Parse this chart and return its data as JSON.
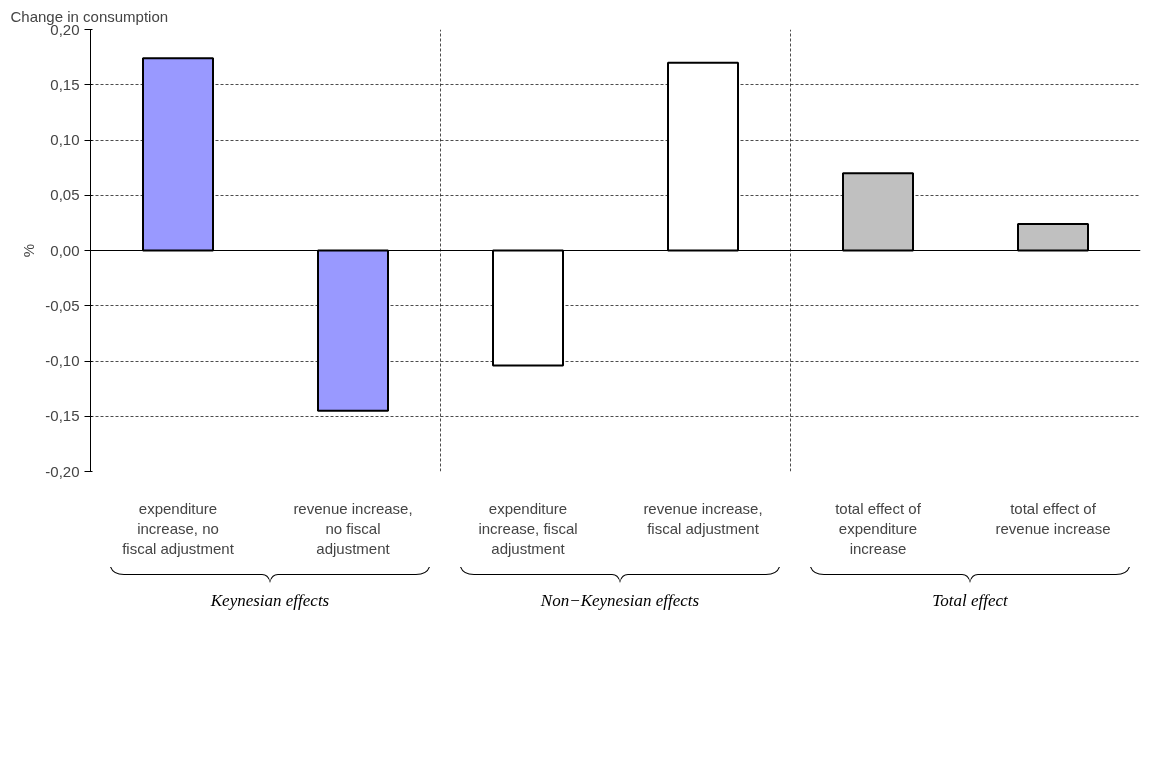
{
  "chart_data": {
    "type": "bar",
    "title": "Change in consumption",
    "ylabel": "%",
    "categories": [
      "expenditure increase, no fiscal adjustment",
      "revenue increase, no fiscal adjustment",
      "expenditure increase, fiscal adjustment",
      "revenue increase, fiscal adjustment",
      "total effect of expenditure increase",
      "total effect of revenue increase"
    ],
    "values": [
      0.174,
      -0.145,
      -0.104,
      0.17,
      0.07,
      0.024
    ],
    "colors": [
      "#9999ff",
      "#9999ff",
      "#ffffff",
      "#ffffff",
      "#c0c0c0",
      "#c0c0c0"
    ],
    "ylim": [
      -0.2,
      0.2
    ],
    "yticks": [
      {
        "value": -0.2,
        "label": "-0,20"
      },
      {
        "value": -0.15,
        "label": "-0,15"
      },
      {
        "value": -0.1,
        "label": "-0,10"
      },
      {
        "value": -0.05,
        "label": "-0,05"
      },
      {
        "value": 0,
        "label": "0,00"
      },
      {
        "value": 0.05,
        "label": "0,05"
      },
      {
        "value": 0.1,
        "label": "0,10"
      },
      {
        "value": 0.15,
        "label": "0,15"
      },
      {
        "value": 0.2,
        "label": "0,20"
      }
    ],
    "grid": true,
    "annotations": [
      "Keynesian effects",
      "Non−Keynesian effects",
      "Total effect"
    ]
  }
}
